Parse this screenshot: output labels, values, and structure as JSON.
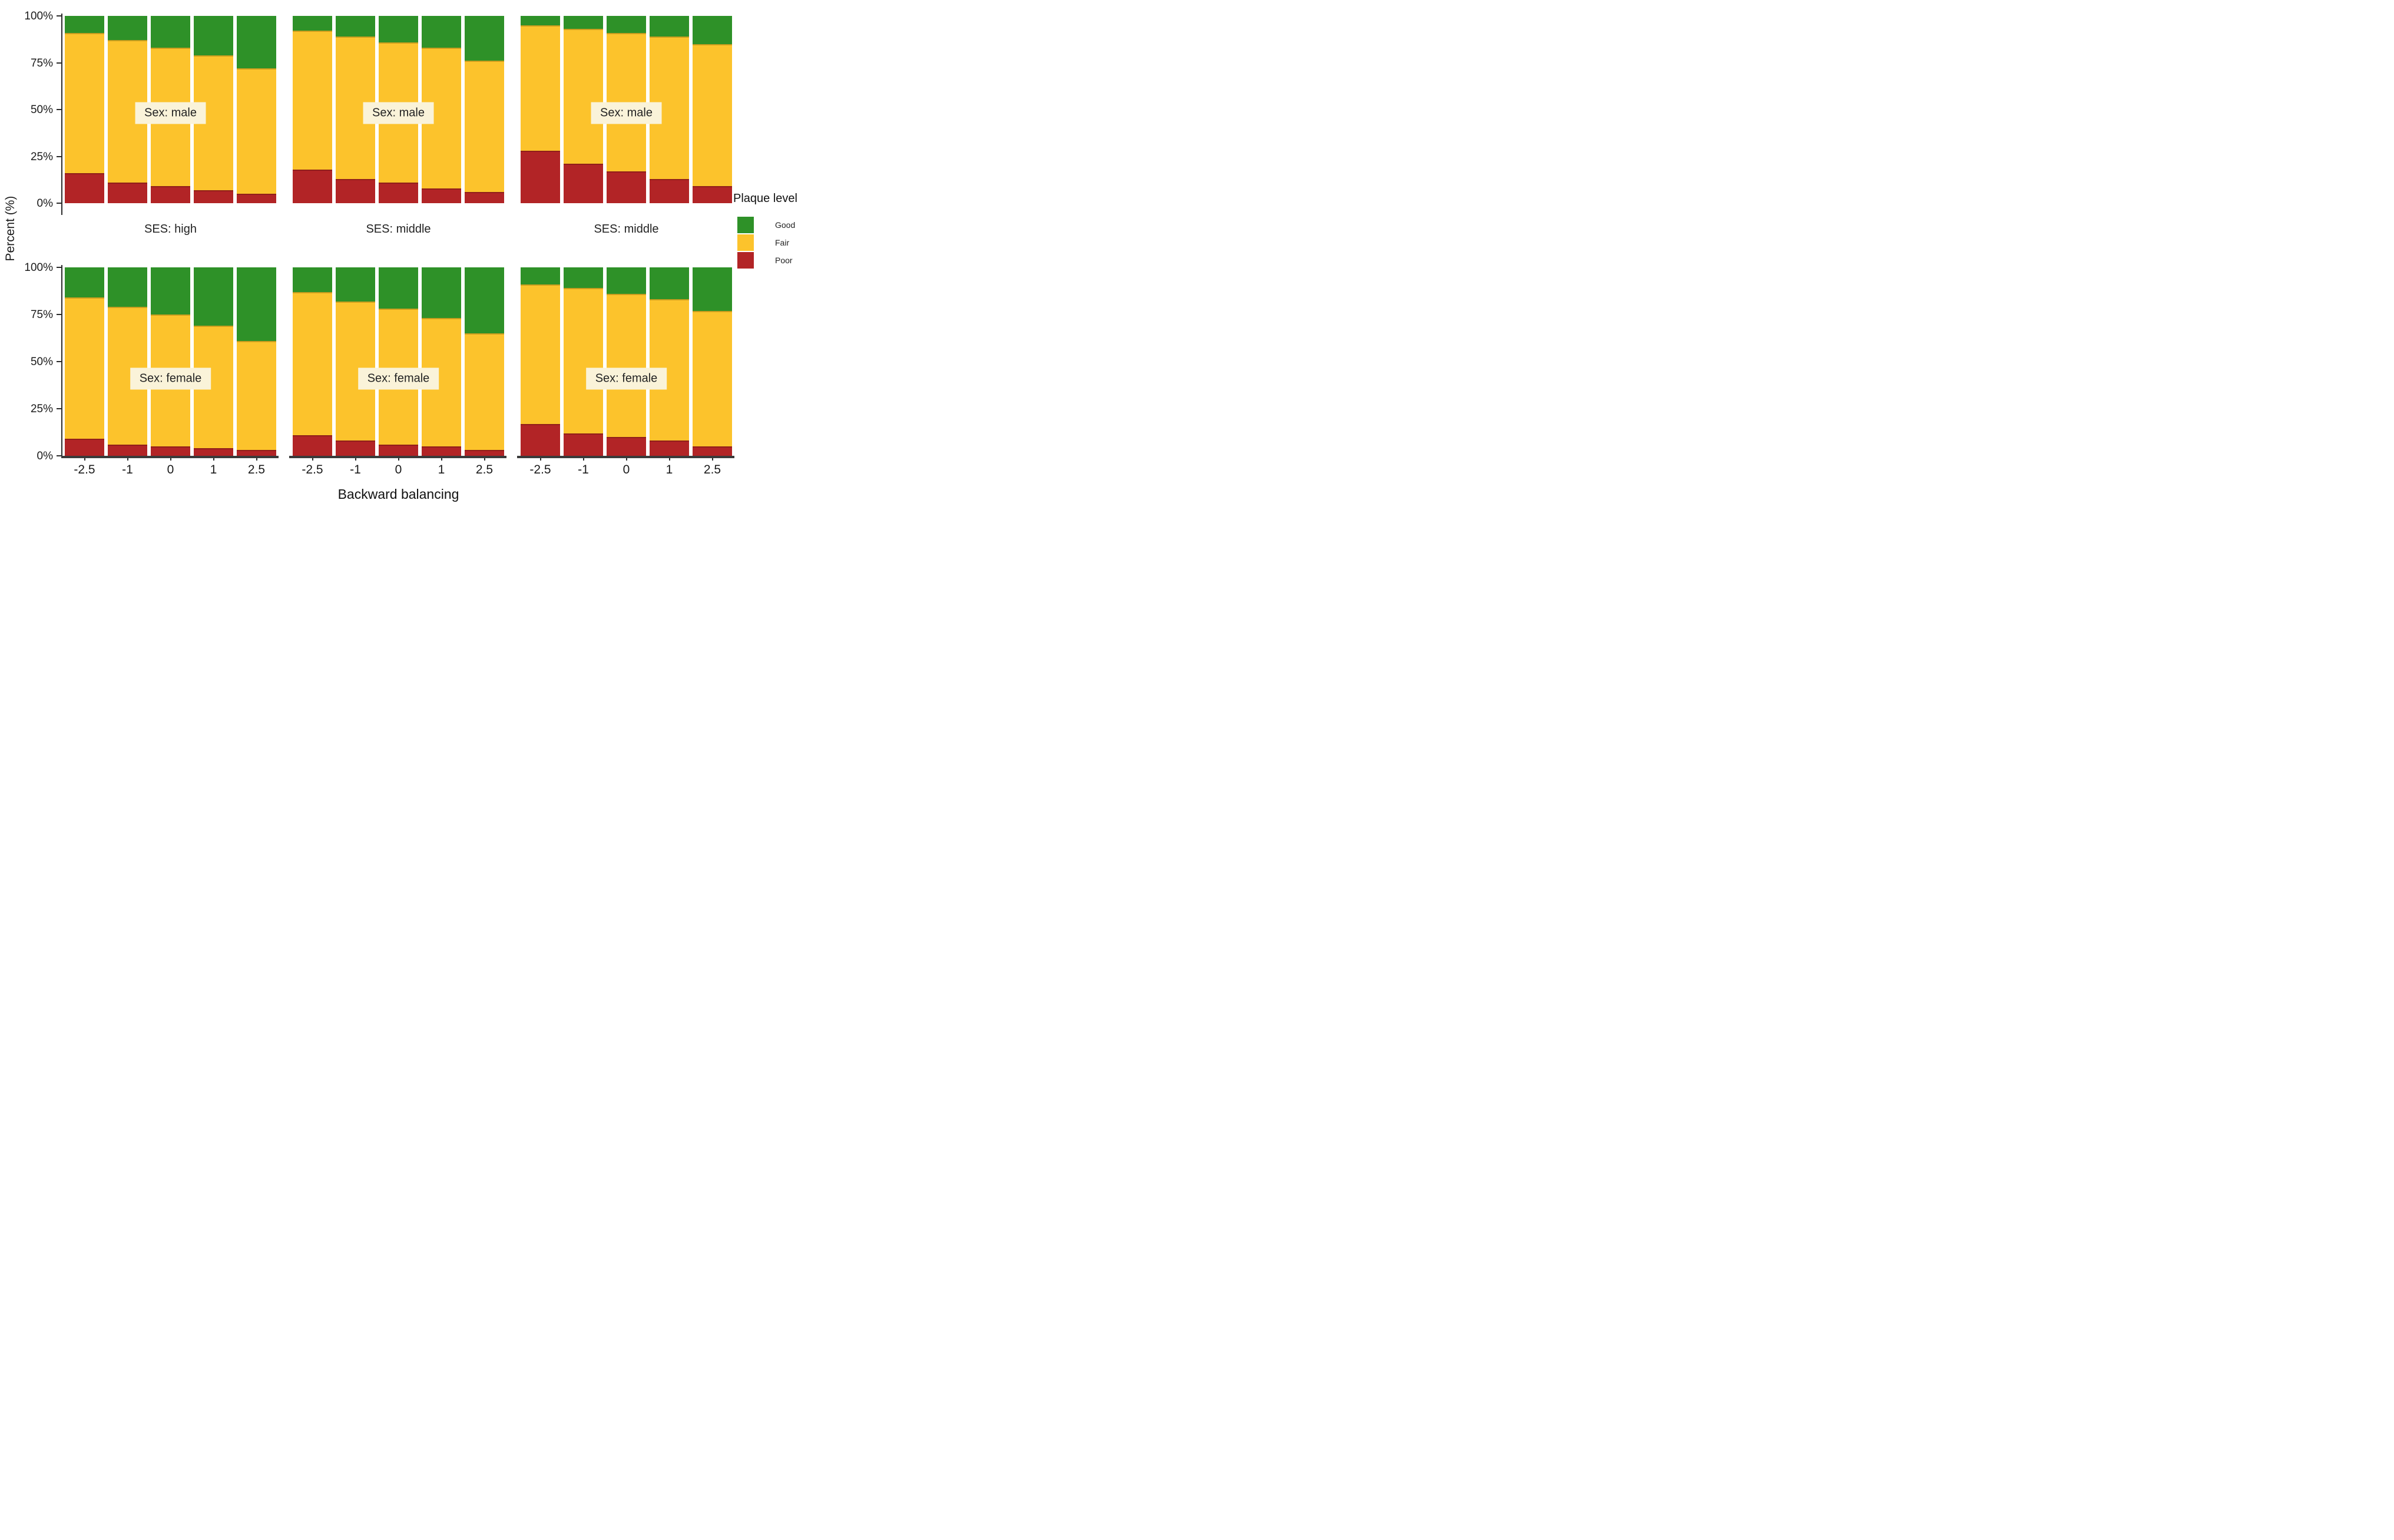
{
  "figure": {
    "y_axis": {
      "title": "Percent (%)",
      "tick_labels": [
        "0%",
        "25%",
        "50%",
        "75%",
        "100%"
      ]
    },
    "x_axis": {
      "title": "Backward balancing",
      "tick_labels": [
        "-2.5",
        "-1",
        "0",
        "1",
        "2.5"
      ]
    },
    "strip_labels": [
      "SES: high",
      "SES: middle",
      "SES: middle"
    ],
    "row_labels": [
      "Sex: male",
      "Sex: female"
    ],
    "legend": {
      "title": "Plaque level",
      "items": [
        {
          "label": "Good",
          "color": "#2e9128"
        },
        {
          "label": "Fair",
          "color": "#fcc32c"
        },
        {
          "label": "Poor",
          "color": "#b22426"
        }
      ]
    }
  },
  "colors": {
    "good": "#2e9128",
    "fair": "#fcc32c",
    "poor": "#b22426",
    "facet_box": "#faf3d9",
    "axis": "#2b2b2b",
    "text": "#1a1a1a"
  },
  "chart_data": {
    "type": "bar",
    "stacked": true,
    "normalized": "percent",
    "title": "",
    "xlabel": "Backward balancing",
    "ylabel": "Percent (%)",
    "ylim": [
      0,
      100
    ],
    "yticks_percent": [
      0,
      25,
      50,
      75,
      100
    ],
    "grid": false,
    "legend_position": "right",
    "categories": [
      "-2.5",
      "-1",
      "0",
      "1",
      "2.5"
    ],
    "series_order_top_to_bottom": [
      "Good",
      "Fair",
      "Poor"
    ],
    "panels": [
      {
        "row": "Sex: male",
        "col": "SES: high",
        "values": {
          "Poor": [
            16,
            11,
            9,
            7,
            5
          ],
          "Fair": [
            75,
            76,
            74,
            72,
            67
          ],
          "Good": [
            9,
            13,
            17,
            21,
            28
          ]
        }
      },
      {
        "row": "Sex: male",
        "col": "SES: middle",
        "values": {
          "Poor": [
            18,
            13,
            11,
            8,
            6
          ],
          "Fair": [
            74,
            76,
            75,
            75,
            70
          ],
          "Good": [
            8,
            11,
            14,
            17,
            24
          ]
        }
      },
      {
        "row": "Sex: male",
        "col": "SES: middle",
        "values": {
          "Poor": [
            28,
            21,
            17,
            13,
            9
          ],
          "Fair": [
            67,
            72,
            74,
            76,
            76
          ],
          "Good": [
            5,
            7,
            9,
            11,
            15
          ]
        }
      },
      {
        "row": "Sex: female",
        "col": "SES: high",
        "values": {
          "Poor": [
            9,
            6,
            5,
            4,
            3
          ],
          "Fair": [
            75,
            73,
            70,
            65,
            58
          ],
          "Good": [
            16,
            21,
            25,
            31,
            39
          ]
        }
      },
      {
        "row": "Sex: female",
        "col": "SES: middle",
        "values": {
          "Poor": [
            11,
            8,
            6,
            5,
            3
          ],
          "Fair": [
            76,
            74,
            72,
            68,
            62
          ],
          "Good": [
            13,
            18,
            22,
            27,
            35
          ]
        }
      },
      {
        "row": "Sex: female",
        "col": "SES: middle",
        "values": {
          "Poor": [
            17,
            12,
            10,
            8,
            5
          ],
          "Fair": [
            74,
            77,
            76,
            75,
            72
          ],
          "Good": [
            9,
            11,
            14,
            17,
            23
          ]
        }
      }
    ]
  }
}
